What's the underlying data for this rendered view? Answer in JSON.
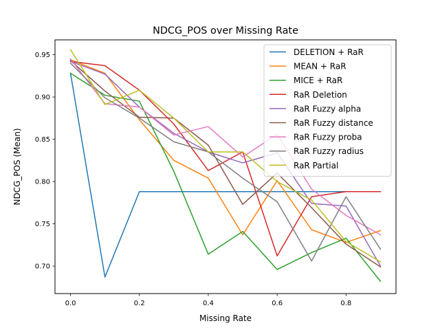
{
  "chart_data": {
    "type": "line",
    "title": "NDCG_POS over Missing Rate",
    "xlabel": "Missing Rate",
    "ylabel": "NDCG_POS (Mean)",
    "xlim": [
      -0.045,
      0.945
    ],
    "ylim": [
      0.6675,
      0.9675
    ],
    "xticks": [
      0.0,
      0.2,
      0.4,
      0.6,
      0.8
    ],
    "xtick_labels": [
      "0.0",
      "0.2",
      "0.4",
      "0.6",
      "0.8"
    ],
    "yticks": [
      0.7,
      0.75,
      0.8,
      0.85,
      0.9,
      0.95
    ],
    "ytick_labels": [
      "0.70",
      "0.75",
      "0.80",
      "0.85",
      "0.90",
      "0.95"
    ],
    "grid": false,
    "legend_position": "upper right",
    "x": [
      0.0,
      0.1,
      0.2,
      0.3,
      0.4,
      0.5,
      0.6,
      0.7,
      0.8,
      0.9
    ],
    "series": [
      {
        "name": "DELETION + RaR",
        "color": "#1f77b4",
        "values": [
          0.928,
          0.687,
          0.788,
          0.788,
          0.788,
          0.788,
          0.788,
          0.788,
          0.788,
          0.788
        ]
      },
      {
        "name": "MEAN + RaR",
        "color": "#ff7f0e",
        "values": [
          0.944,
          0.928,
          0.873,
          0.825,
          0.804,
          0.737,
          0.801,
          0.743,
          0.728,
          0.742
        ]
      },
      {
        "name": "MICE + RaR",
        "color": "#2ca02c",
        "values": [
          0.928,
          0.902,
          0.895,
          0.812,
          0.714,
          0.741,
          0.696,
          0.716,
          0.733,
          0.682
        ]
      },
      {
        "name": "RaR Deletion",
        "color": "#d62728",
        "values": [
          0.942,
          0.937,
          0.908,
          0.868,
          0.813,
          0.835,
          0.712,
          0.782,
          0.788,
          0.788
        ]
      },
      {
        "name": "RaR Fuzzy alpha",
        "color": "#9467bd",
        "values": [
          0.942,
          0.927,
          0.888,
          0.857,
          0.835,
          0.822,
          0.834,
          0.774,
          0.771,
          0.7
        ]
      },
      {
        "name": "RaR Fuzzy distance",
        "color": "#8c564b",
        "values": [
          0.943,
          0.907,
          0.876,
          0.875,
          0.843,
          0.773,
          0.81,
          0.769,
          0.726,
          0.699
        ]
      },
      {
        "name": "RaR Fuzzy proba",
        "color": "#e377c2",
        "values": [
          0.945,
          0.892,
          0.888,
          0.855,
          0.865,
          0.829,
          0.856,
          0.791,
          0.76,
          0.737
        ]
      },
      {
        "name": "RaR Fuzzy radius",
        "color": "#7f7f7f",
        "values": [
          0.94,
          0.899,
          0.875,
          0.847,
          0.835,
          0.804,
          0.776,
          0.706,
          0.782,
          0.72
        ]
      },
      {
        "name": "RaR Partial",
        "color": "#bcbd22",
        "values": [
          0.956,
          0.891,
          0.908,
          0.875,
          0.835,
          0.835,
          0.8,
          0.778,
          0.729,
          0.705
        ]
      }
    ]
  }
}
